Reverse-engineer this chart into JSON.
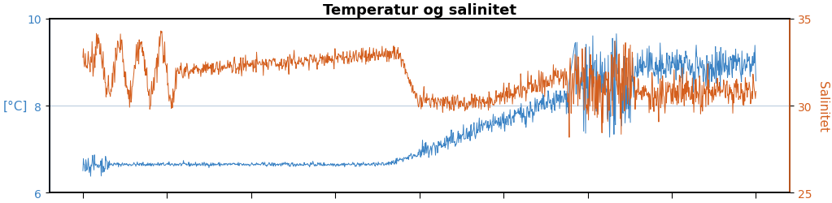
{
  "title": "Temperatur og salinitet",
  "ylabel_left": "[°C]",
  "ylabel_right": "Salinitet",
  "ylim_left": [
    6,
    10
  ],
  "ylim_right": [
    25,
    35
  ],
  "yticks_left": [
    6,
    8,
    10
  ],
  "yticks_right": [
    25,
    30,
    35
  ],
  "n_points": 1400,
  "temp_color": "#3a82c4",
  "sal_color": "#d45f1e",
  "bg_color": "#ffffff",
  "grid_color": "#c0d0e0",
  "title_fontsize": 13,
  "axis_label_fontsize": 11,
  "tick_fontsize": 10,
  "linewidth": 0.7
}
